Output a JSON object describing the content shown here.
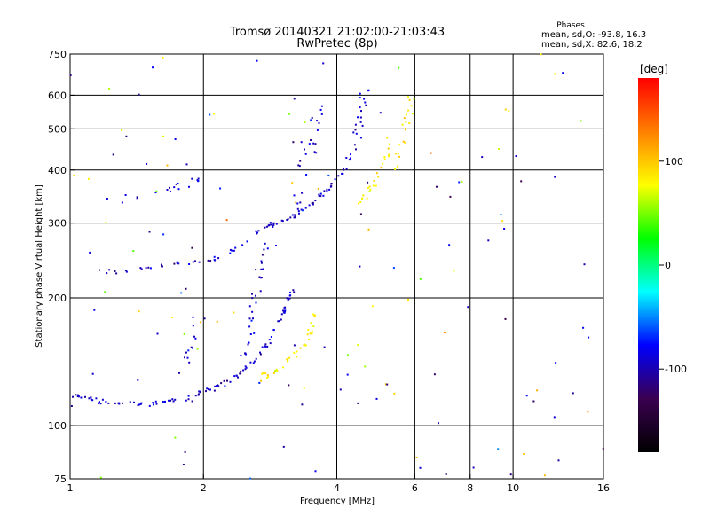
{
  "window": {
    "title_line1": "Tromsø 20140321 21:02:00-21:03:43",
    "title_line2": "RwPretec (8p)"
  },
  "phases": {
    "heading": "Phases",
    "line_o": "mean, sd,O: -93.8, 16.3",
    "line_x": "mean, sd,X:  82.6, 18.2"
  },
  "colorbar": {
    "unit": "[deg]",
    "min": -180,
    "max": 180,
    "stops": [
      "#000000",
      "#3a0050",
      "#0000ff",
      "#00ffff",
      "#00ff00",
      "#ffff00",
      "#ff8000",
      "#ff0000"
    ],
    "ticks": [
      {
        "value": 100,
        "label": "100"
      },
      {
        "value": 0,
        "label": "0"
      },
      {
        "value": -100,
        "label": "-100"
      }
    ]
  },
  "chart_data": {
    "type": "scatter",
    "title": "Tromsø 20140321 21:02:00-21:03:43",
    "subtitle": "RwPretec (8p)",
    "xlabel": "Frequency [MHz]",
    "ylabel": "Stationary phase Virtual Height [km]",
    "xscale": "log",
    "yscale": "log",
    "xlim": [
      1,
      16
    ],
    "ylim": [
      75,
      750
    ],
    "grid": true,
    "x_ticks": [
      {
        "value": 1,
        "label": "1"
      },
      {
        "value": 2,
        "label": "2"
      },
      {
        "value": 4,
        "label": "4"
      },
      {
        "value": 6,
        "label": "6"
      },
      {
        "value": 8,
        "label": "8"
      },
      {
        "value": 10,
        "label": "10"
      },
      {
        "value": 16,
        "label": "16"
      }
    ],
    "x_grid": [
      2,
      4,
      6,
      8,
      10
    ],
    "y_ticks": [
      {
        "value": 75,
        "label": "75"
      },
      {
        "value": 100,
        "label": "100"
      },
      {
        "value": 200,
        "label": "200"
      },
      {
        "value": 300,
        "label": "300"
      },
      {
        "value": 400,
        "label": "400"
      },
      {
        "value": 500,
        "label": "500"
      },
      {
        "value": 600,
        "label": "600"
      },
      {
        "value": 750,
        "label": "750"
      }
    ],
    "y_grid": [
      100,
      200,
      300,
      400,
      500,
      600
    ],
    "color_value": "phase [deg]",
    "traces": [
      {
        "mode": "O",
        "phase_mean": -93.8,
        "phase_sd": 16.3,
        "density": 9,
        "spread": 0.012,
        "points": [
          [
            1.0,
            118
          ],
          [
            1.1,
            116
          ],
          [
            1.2,
            114
          ],
          [
            1.4,
            112
          ],
          [
            1.6,
            113
          ],
          [
            1.8,
            116
          ],
          [
            2.0,
            120
          ],
          [
            2.2,
            125
          ],
          [
            2.4,
            132
          ],
          [
            2.6,
            142
          ],
          [
            2.8,
            158
          ],
          [
            3.0,
            180
          ],
          [
            3.1,
            198
          ],
          [
            3.2,
            212
          ]
        ]
      },
      {
        "mode": "O",
        "phase_mean": -93.8,
        "phase_sd": 16.3,
        "density": 6,
        "spread": 0.03,
        "points": [
          [
            2.5,
            145
          ],
          [
            2.55,
            165
          ],
          [
            2.6,
            190
          ],
          [
            2.65,
            215
          ],
          [
            2.7,
            240
          ],
          [
            2.75,
            270
          ]
        ]
      },
      {
        "mode": "O",
        "phase_mean": -93.8,
        "phase_sd": 16.3,
        "density": 5,
        "spread": 0.01,
        "points": [
          [
            1.1,
            232
          ],
          [
            1.3,
            230
          ],
          [
            1.5,
            235
          ],
          [
            1.7,
            240
          ],
          [
            1.9,
            243
          ],
          [
            2.1,
            245
          ],
          [
            2.3,
            258
          ],
          [
            2.5,
            272
          ],
          [
            2.7,
            290
          ],
          [
            2.9,
            300
          ]
        ]
      },
      {
        "mode": "O",
        "phase_mean": -93.8,
        "phase_sd": 16.3,
        "density": 7,
        "spread": 0.01,
        "points": [
          [
            2.8,
            295
          ],
          [
            3.0,
            302
          ],
          [
            3.2,
            312
          ],
          [
            3.4,
            325
          ],
          [
            3.6,
            340
          ],
          [
            3.8,
            358
          ],
          [
            4.0,
            380
          ],
          [
            4.2,
            405
          ]
        ]
      },
      {
        "mode": "O",
        "phase_mean": -93.8,
        "phase_sd": 16.3,
        "density": 5,
        "spread": 0.05,
        "points": [
          [
            3.3,
            330
          ],
          [
            3.35,
            380
          ],
          [
            3.4,
            420
          ],
          [
            3.5,
            460
          ],
          [
            3.6,
            510
          ],
          [
            3.7,
            560
          ]
        ]
      },
      {
        "mode": "O",
        "phase_mean": -93.8,
        "phase_sd": 16.3,
        "density": 6,
        "spread": 0.04,
        "points": [
          [
            4.3,
            420
          ],
          [
            4.4,
            470
          ],
          [
            4.5,
            520
          ],
          [
            4.55,
            570
          ],
          [
            4.6,
            620
          ]
        ]
      },
      {
        "mode": "O",
        "phase_mean": -93.8,
        "phase_sd": 16.3,
        "density": 4,
        "spread": 0.02,
        "points": [
          [
            1.3,
            340
          ],
          [
            1.5,
            350
          ],
          [
            1.7,
            360
          ],
          [
            1.9,
            372
          ],
          [
            2.0,
            380
          ]
        ]
      },
      {
        "mode": "O",
        "phase_mean": -93.8,
        "phase_sd": 16.3,
        "density": 4,
        "spread": 0.05,
        "points": [
          [
            1.8,
            135
          ],
          [
            1.85,
            150
          ],
          [
            1.9,
            165
          ],
          [
            1.95,
            180
          ]
        ]
      },
      {
        "mode": "X",
        "phase_mean": 82.6,
        "phase_sd": 18.2,
        "density": 6,
        "spread": 0.02,
        "points": [
          [
            2.6,
            128
          ],
          [
            2.8,
            132
          ],
          [
            3.0,
            138
          ],
          [
            3.2,
            145
          ],
          [
            3.4,
            158
          ],
          [
            3.5,
            170
          ],
          [
            3.6,
            185
          ]
        ]
      },
      {
        "mode": "X",
        "phase_mean": 82.6,
        "phase_sd": 18.2,
        "density": 5,
        "spread": 0.02,
        "points": [
          [
            4.4,
            330
          ],
          [
            4.6,
            345
          ],
          [
            4.8,
            365
          ],
          [
            5.0,
            395
          ],
          [
            5.2,
            430
          ],
          [
            5.3,
            470
          ]
        ]
      },
      {
        "mode": "X",
        "phase_mean": 82.6,
        "phase_sd": 18.2,
        "density": 5,
        "spread": 0.04,
        "points": [
          [
            5.5,
            400
          ],
          [
            5.6,
            450
          ],
          [
            5.7,
            510
          ],
          [
            5.8,
            560
          ],
          [
            5.85,
            600
          ]
        ]
      }
    ]
  }
}
